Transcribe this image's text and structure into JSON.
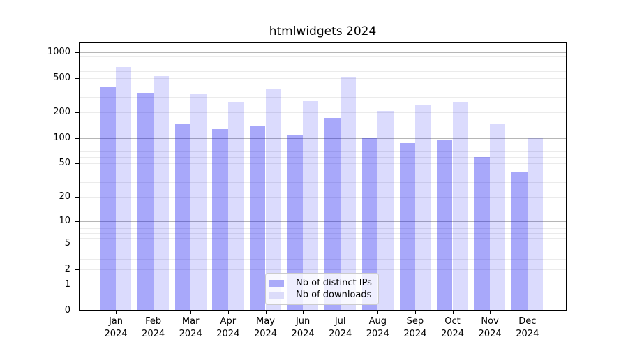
{
  "chart_data": {
    "type": "bar",
    "title": "htmlwidgets 2024",
    "year_label": "2024",
    "categories": [
      "Jan",
      "Feb",
      "Mar",
      "Apr",
      "May",
      "Jun",
      "Jul",
      "Aug",
      "Sep",
      "Oct",
      "Nov",
      "Dec"
    ],
    "series": [
      {
        "name": "Nb of distinct IPs",
        "color_hex": "#aaaaf9",
        "color_rgba": "rgba(0,0,240,0.34)",
        "values": [
          400,
          335,
          148,
          126,
          139,
          110,
          172,
          102,
          87,
          94,
          60,
          39
        ]
      },
      {
        "name": "Nb of downloads",
        "color_hex": "#dcdcfa",
        "color_rgba": "rgba(0,0,240,0.14)",
        "values": [
          675,
          530,
          330,
          265,
          380,
          275,
          510,
          207,
          240,
          265,
          144,
          102
        ]
      }
    ],
    "yscale": "log1p",
    "ylim": [
      0,
      1318
    ],
    "yticks": [
      0,
      1,
      2,
      5,
      10,
      20,
      50,
      100,
      200,
      500,
      1000
    ],
    "grid": {
      "major_lines": [
        1,
        10,
        100,
        1000
      ],
      "minor_lines": [
        2,
        3,
        4,
        5,
        6,
        7,
        8,
        9,
        20,
        30,
        40,
        50,
        60,
        70,
        80,
        90,
        200,
        300,
        400,
        500,
        600,
        700,
        800,
        900
      ],
      "major_color": "#b6b6b6",
      "minor_color": "#ebebeb"
    },
    "legend_position": "lower center",
    "xlabel": "",
    "ylabel": ""
  }
}
